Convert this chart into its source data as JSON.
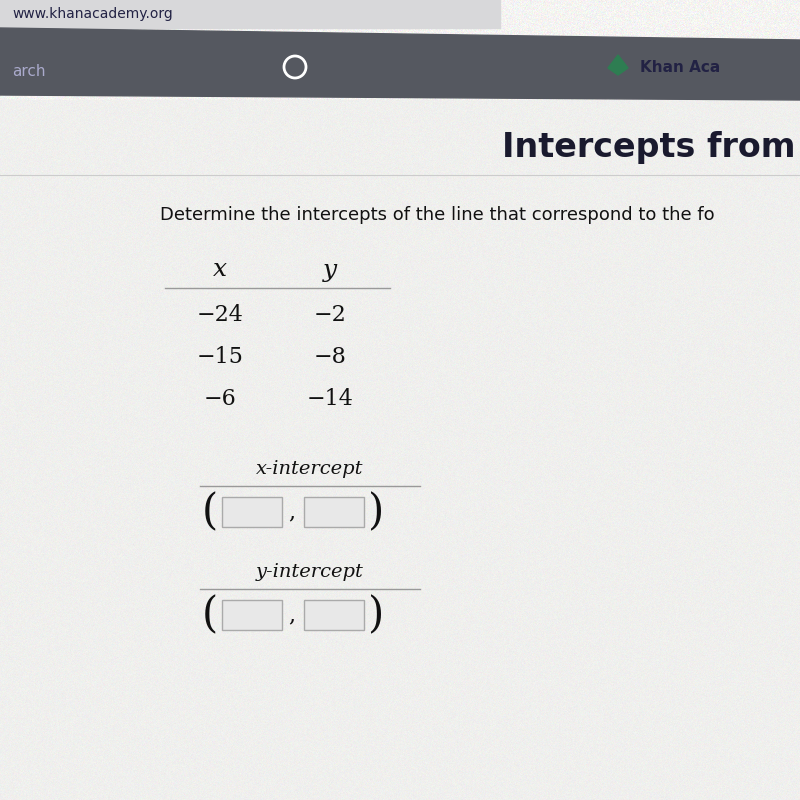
{
  "title_text": "Intercepts from",
  "title_fontsize": 24,
  "title_color": "#1a1a2e",
  "url_text": "www.khanacademy.org",
  "url_color": "#222244",
  "browser_dark_color": "#555860",
  "browser_bg": "#c8c8cc",
  "content_bg_top": "#dcdcdc",
  "content_bg_main": "#f5f5f3",
  "question_text": "Determine the intercepts of the line that correspond to the fo",
  "question_fontsize": 13,
  "question_color": "#111111",
  "table_x_label": "x",
  "table_y_label": "y",
  "table_data": [
    [
      "−24",
      "−2"
    ],
    [
      "−15",
      "−8"
    ],
    [
      "−6",
      "−14"
    ]
  ],
  "table_fontsize": 16,
  "table_color": "#111111",
  "x_intercept_label": "x-intercept",
  "y_intercept_label": "y-intercept",
  "intercept_fontsize": 14,
  "intercept_color": "#111111",
  "box_color": "#e8e8e8",
  "box_border_color": "#aaaaaa",
  "paren_fontsize": 30,
  "comma_fontsize": 16,
  "line_color": "#999999"
}
